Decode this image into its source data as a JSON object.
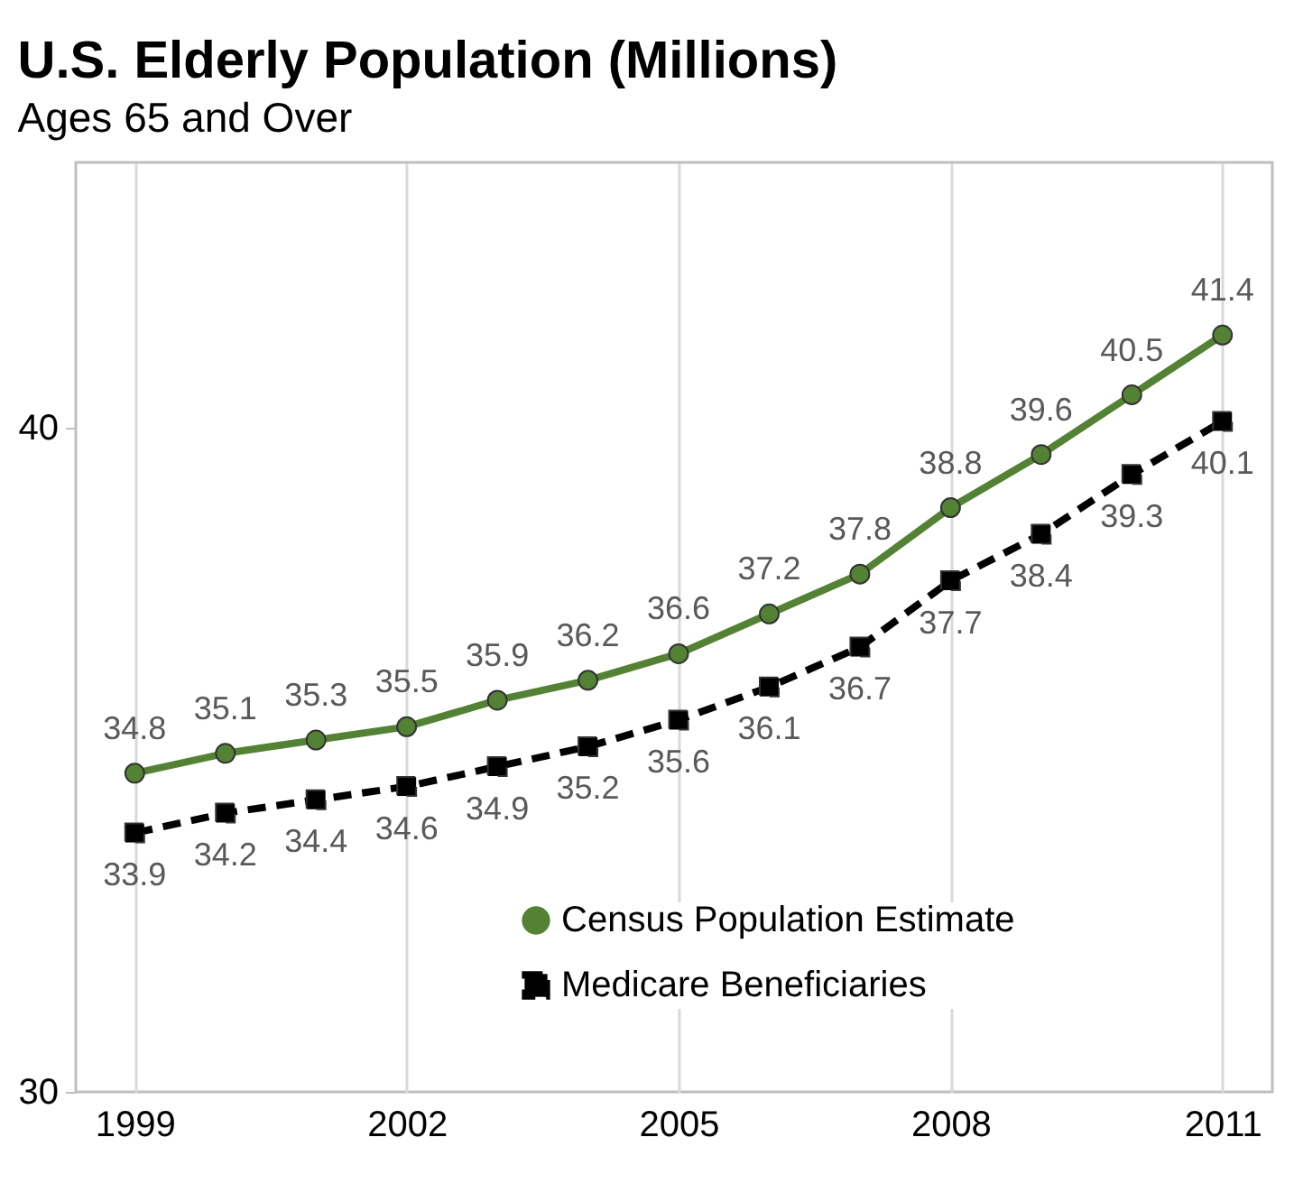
{
  "chart_data": {
    "type": "line",
    "title": "U.S. Elderly Population (Millions)",
    "subtitle": "Ages 65 and Over",
    "x": [
      1999,
      2000,
      2001,
      2002,
      2003,
      2004,
      2005,
      2006,
      2007,
      2008,
      2009,
      2010,
      2011
    ],
    "series": [
      {
        "name": "Census Population Estimate",
        "color": "#548235",
        "marker": "circle",
        "line_style": "solid",
        "values": [
          34.8,
          35.1,
          35.3,
          35.5,
          35.9,
          36.2,
          36.6,
          37.2,
          37.8,
          38.8,
          39.6,
          40.5,
          41.4
        ]
      },
      {
        "name": "Medicare Beneficiaries",
        "color": "#000000",
        "marker": "square",
        "line_style": "dashed",
        "values": [
          33.9,
          34.2,
          34.4,
          34.6,
          34.9,
          35.2,
          35.6,
          36.1,
          36.7,
          37.7,
          38.4,
          39.3,
          40.1
        ]
      }
    ],
    "xlim": [
      1998.35,
      2011.55
    ],
    "xticks": [
      1999,
      2002,
      2005,
      2008,
      2011
    ],
    "ylim": [
      30,
      44
    ],
    "yticks": [
      30,
      40
    ],
    "grid": "x",
    "legend": "bottom right",
    "data_labels": true
  }
}
